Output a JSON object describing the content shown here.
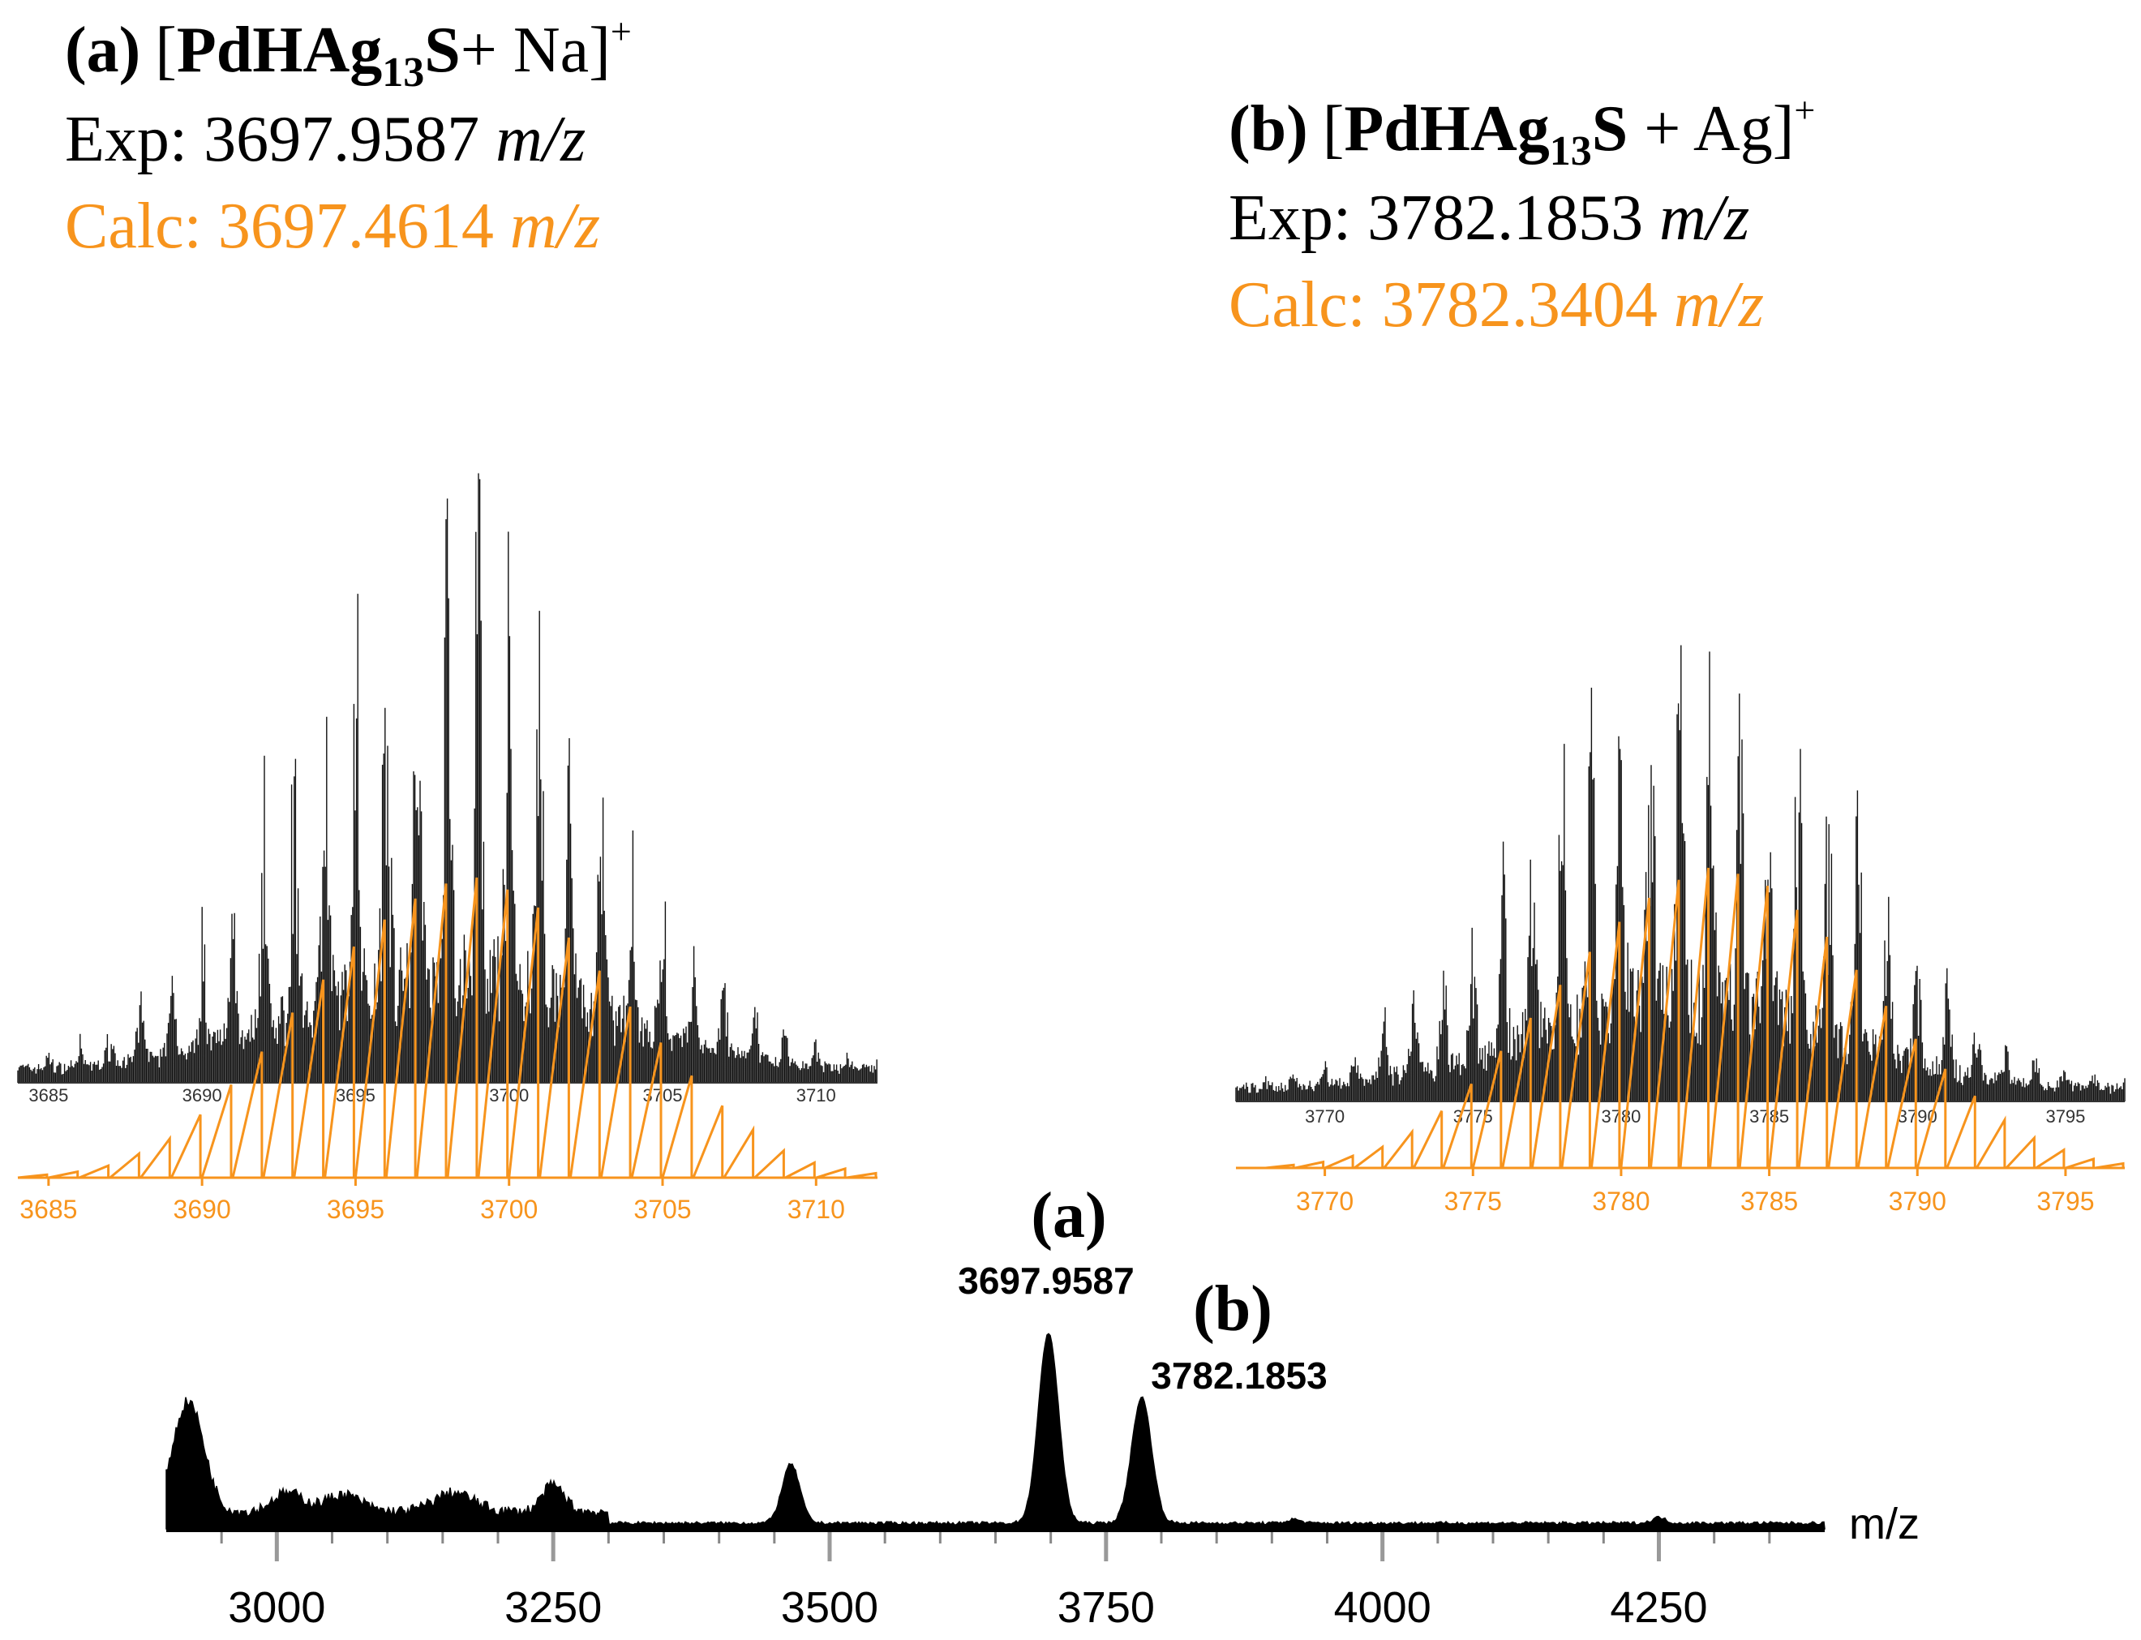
{
  "colors": {
    "experimental": "#111111",
    "calculated": "#f7941d",
    "axis": "#000000"
  },
  "panel_a": {
    "tag": "(a)",
    "ion_open": "[",
    "formula_main": "PdHAg",
    "formula_sub": "13",
    "formula_end": "S",
    "adduct": "+ Na",
    "ion_close": "]",
    "charge": "+",
    "exp_label": "Exp: 3697.9587",
    "calc_label": "Calc: 3697.4614",
    "unit": "m/z"
  },
  "panel_b": {
    "tag": "(b)",
    "ion_open": "[",
    "formula_main": "PdHAg",
    "formula_sub": "13",
    "formula_end": "S",
    "adduct": " + Ag",
    "ion_close": "]",
    "charge": "+",
    "exp_label": "Exp: 3782.1853",
    "calc_label": "Calc: 3782.3404",
    "unit": "m/z"
  },
  "main_spectrum": {
    "peak_a_tag": "(a)",
    "peak_a_value": "3697.9587",
    "peak_b_tag": "(b)",
    "peak_b_value": "3782.1853",
    "axis_label": "m/z"
  },
  "chart_data": [
    {
      "id": "inset-a",
      "type": "line",
      "title": "(a) [PdHAg13S+ Na]+",
      "xlabel": "m/z",
      "xlim": [
        3684,
        3712
      ],
      "xticks": [
        3685,
        3690,
        3695,
        3700,
        3705,
        3710
      ],
      "center": 3697.5,
      "spacing": 1,
      "series": [
        {
          "name": "Experimental",
          "color": "#111111",
          "style": "dense sticks",
          "envelope_peak_mz": 3697.9587,
          "envelope_sigma": 4.8
        },
        {
          "name": "Calculated",
          "color": "#f7941d",
          "style": "sawtooth",
          "x": [
            3684,
            3685,
            3686,
            3687,
            3688,
            3689,
            3690,
            3691,
            3692,
            3693,
            3694,
            3695,
            3696,
            3697,
            3698,
            3699,
            3700,
            3701,
            3702,
            3703,
            3704,
            3705,
            3706,
            3707,
            3708,
            3709,
            3710,
            3711
          ],
          "values": [
            0.01,
            0.02,
            0.04,
            0.08,
            0.13,
            0.21,
            0.31,
            0.42,
            0.55,
            0.66,
            0.77,
            0.86,
            0.93,
            0.98,
            1.0,
            0.96,
            0.9,
            0.8,
            0.69,
            0.57,
            0.45,
            0.34,
            0.24,
            0.16,
            0.09,
            0.05,
            0.03,
            0.015
          ]
        }
      ]
    },
    {
      "id": "inset-b",
      "type": "line",
      "title": "(b) [PdHAg13S + Ag]+",
      "xlabel": "m/z",
      "xlim": [
        3767,
        3797
      ],
      "xticks": [
        3770,
        3775,
        3780,
        3785,
        3790,
        3795
      ],
      "center": 3782.5,
      "spacing": 1,
      "series": [
        {
          "name": "Experimental",
          "color": "#111111",
          "style": "dense sticks",
          "envelope_peak_mz": 3782.1853,
          "envelope_sigma": 5.0
        },
        {
          "name": "Calculated",
          "color": "#f7941d",
          "style": "sawtooth",
          "x": [
            3768,
            3769,
            3770,
            3771,
            3772,
            3773,
            3774,
            3775,
            3776,
            3777,
            3778,
            3779,
            3780,
            3781,
            3782,
            3783,
            3784,
            3785,
            3786,
            3787,
            3788,
            3789,
            3790,
            3791,
            3792,
            3793,
            3794,
            3795,
            3796
          ],
          "values": [
            0.01,
            0.02,
            0.04,
            0.07,
            0.12,
            0.19,
            0.28,
            0.39,
            0.5,
            0.61,
            0.72,
            0.82,
            0.9,
            0.96,
            1.0,
            0.98,
            0.94,
            0.86,
            0.77,
            0.66,
            0.54,
            0.43,
            0.33,
            0.24,
            0.16,
            0.1,
            0.06,
            0.03,
            0.015
          ]
        }
      ]
    },
    {
      "id": "main-spectrum",
      "type": "line",
      "title": "",
      "xlabel": "m/z",
      "xlim": [
        2900,
        4400
      ],
      "xticks": [
        3000,
        3250,
        3500,
        3750,
        4000,
        4250
      ],
      "series": [
        {
          "name": "Mass spectrum",
          "color": "#000000",
          "peaks": [
            {
              "x": 2920,
              "height": 0.58,
              "width": 14
            },
            {
              "x": 3010,
              "height": 0.1,
              "width": 14
            },
            {
              "x": 3060,
              "height": 0.09,
              "width": 16
            },
            {
              "x": 3160,
              "height": 0.1,
              "width": 18
            },
            {
              "x": 3250,
              "height": 0.14,
              "width": 10
            },
            {
              "x": 3465,
              "height": 0.31,
              "width": 8
            },
            {
              "x": 3697.9587,
              "height": 1.0,
              "width": 9
            },
            {
              "x": 3782.1853,
              "height": 0.66,
              "width": 9
            },
            {
              "x": 3920,
              "height": 0.02,
              "width": 6
            },
            {
              "x": 4250,
              "height": 0.03,
              "width": 6
            }
          ]
        }
      ]
    }
  ]
}
